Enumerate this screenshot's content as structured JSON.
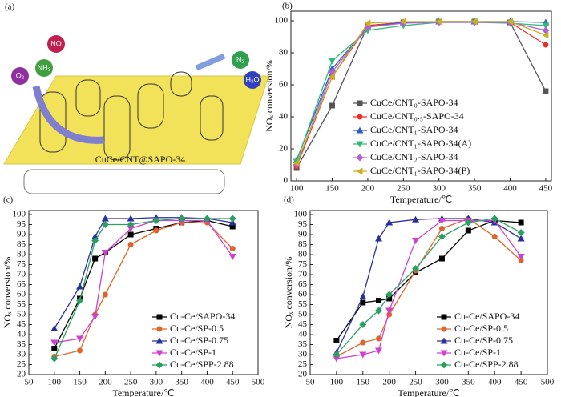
{
  "illustration": {
    "panel_label": "(a)",
    "molecules": [
      "NO",
      "NH₃",
      "O₂",
      "N₂",
      "H₂O"
    ],
    "caption": "CuCe/CNT@SAPO-34"
  },
  "chart_data": [
    {
      "type": "line",
      "panel_label": "(b)",
      "x_label": "Temperature/℃",
      "y_label": "NOₓ conversion/%",
      "legend": "lower right",
      "x": [
        100,
        150,
        200,
        250,
        300,
        350,
        400,
        450
      ],
      "xlim": [
        92,
        458
      ],
      "ylim": [
        0,
        106
      ],
      "xticks": [
        100,
        150,
        200,
        250,
        300,
        350,
        400,
        450
      ],
      "yticks": [
        0,
        20,
        40,
        60,
        80,
        100
      ],
      "series": [
        {
          "name": "CuCe/CNT₀-SAPO-34",
          "color": "#555555",
          "marker": "square",
          "values": [
            8,
            47,
            97,
            99,
            99.5,
            99.5,
            99,
            56
          ]
        },
        {
          "name": "CuCe/CNT₀.₅-SAPO-34",
          "color": "#e8302a",
          "marker": "circle",
          "values": [
            9,
            65,
            97,
            99,
            99.5,
            99.5,
            99,
            85
          ]
        },
        {
          "name": "CuCe/CNT₁-SAPO-34",
          "color": "#2b5fce",
          "marker": "triangle-up",
          "values": [
            13,
            70,
            96,
            99,
            99.5,
            99.5,
            99.5,
            99
          ]
        },
        {
          "name": "CuCe/CNT₁-SAPO-34(A)",
          "color": "#2dbb74",
          "marker": "triangle-down",
          "values": [
            12,
            75,
            94,
            97,
            99,
            99,
            98.5,
            97
          ]
        },
        {
          "name": "CuCe/CNT₂-SAPO-34",
          "color": "#b360d8",
          "marker": "diamond",
          "values": [
            10,
            68,
            96,
            98.5,
            99,
            99,
            99,
            94
          ]
        },
        {
          "name": "CuCe/CNT₁-SAPO-34(P)",
          "color": "#c8b020",
          "marker": "triangle-left",
          "values": [
            11,
            65,
            98.5,
            99.5,
            99.5,
            99.5,
            99.5,
            91
          ]
        }
      ]
    },
    {
      "type": "line",
      "panel_label": "(c)",
      "x_label": "Temperature/℃",
      "y_label": "NOₓ conversion/%",
      "legend": "lower right",
      "x": [
        100,
        150,
        180,
        200,
        250,
        300,
        350,
        400,
        450
      ],
      "xlim": [
        50,
        500
      ],
      "ylim": [
        20,
        102
      ],
      "xticks": [
        50,
        100,
        150,
        200,
        250,
        300,
        350,
        400,
        450,
        500
      ],
      "yticks": [
        20,
        25,
        30,
        35,
        40,
        45,
        50,
        55,
        60,
        65,
        70,
        75,
        80,
        85,
        90,
        95,
        100
      ],
      "series": [
        {
          "name": "Cu-Ce/SAPO-34",
          "color": "#000000",
          "marker": "square",
          "values": [
            33,
            58,
            78,
            81,
            90,
            93,
            96,
            97,
            94
          ]
        },
        {
          "name": "Cu-Ce/SP-0.5",
          "color": "#e0642a",
          "marker": "circle",
          "values": [
            29,
            32,
            50,
            60,
            85,
            92,
            96,
            96,
            83
          ]
        },
        {
          "name": "Cu-Ce/SP-0.75",
          "color": "#2a2fa0",
          "marker": "triangle-up",
          "values": [
            43,
            64,
            89,
            98,
            98,
            98.5,
            98.5,
            98,
            96
          ]
        },
        {
          "name": "Cu-Ce/SP-1",
          "color": "#d040d0",
          "marker": "triangle-down",
          "values": [
            36,
            38,
            49,
            81,
            93,
            97,
            97,
            97,
            79
          ]
        },
        {
          "name": "Cu-Ce/SPP-2.88",
          "color": "#2aa060",
          "marker": "diamond",
          "values": [
            28,
            57,
            87,
            95,
            95,
            97,
            98,
            98,
            98
          ]
        }
      ]
    },
    {
      "type": "line",
      "panel_label": "(d)",
      "x_label": "Temperature/℃",
      "y_label": "NOₓ conversion/%",
      "legend": "lower right",
      "x": [
        100,
        150,
        180,
        200,
        250,
        300,
        350,
        400,
        450
      ],
      "xlim": [
        50,
        500
      ],
      "ylim": [
        20,
        102
      ],
      "xticks": [
        50,
        100,
        150,
        200,
        250,
        300,
        350,
        400,
        450,
        500
      ],
      "yticks": [
        20,
        25,
        30,
        35,
        40,
        45,
        50,
        55,
        60,
        65,
        70,
        75,
        80,
        85,
        90,
        95,
        100
      ],
      "series": [
        {
          "name": "Cu-Ce/SAPO-34",
          "color": "#000000",
          "marker": "square",
          "values": [
            37,
            56,
            57,
            58,
            71,
            78,
            92,
            97,
            96
          ]
        },
        {
          "name": "Cu-Ce/SP-0.5",
          "color": "#e0642a",
          "marker": "circle",
          "values": [
            29,
            36,
            38,
            50,
            72,
            93,
            98,
            89,
            77
          ]
        },
        {
          "name": "Cu-Ce/SP-0.75",
          "color": "#2a2fa0",
          "marker": "triangle-up",
          "values": [
            31,
            59,
            88,
            96,
            97.5,
            98,
            98,
            96,
            88
          ]
        },
        {
          "name": "Cu-Ce/SP-1",
          "color": "#d040d0",
          "marker": "triangle-down",
          "values": [
            28,
            30,
            32,
            52,
            87,
            97,
            97,
            97,
            79
          ]
        },
        {
          "name": "Cu-Ce/SPP-2.88",
          "color": "#2aa060",
          "marker": "diamond",
          "values": [
            30,
            45,
            52,
            60,
            73,
            89,
            96,
            98,
            91
          ]
        }
      ]
    }
  ]
}
